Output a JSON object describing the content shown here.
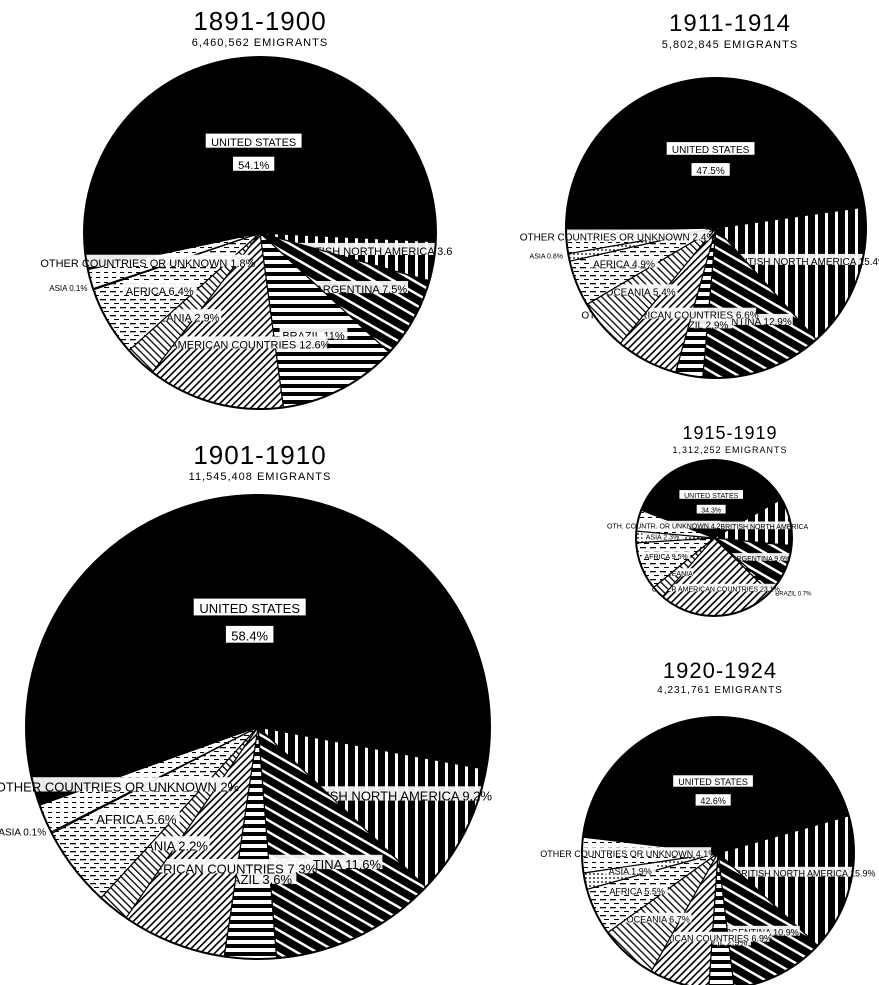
{
  "chart_data": [
    {
      "type": "pie",
      "title": "1891-1900",
      "subtitle": "6,460,562 EMIGRANTS",
      "slices": [
        {
          "label": "UNITED STATES",
          "value": 54.1,
          "pct": "54.1%"
        },
        {
          "label": "BRITISH NORTH AMERICA",
          "value": 3.6,
          "pct": "3.6"
        },
        {
          "label": "ARGENTINA",
          "value": 7.5,
          "pct": "7.5%"
        },
        {
          "label": "BRAZIL",
          "value": 11,
          "pct": "11%"
        },
        {
          "label": "OTHER AMERICAN COUNTRIES",
          "value": 12.6,
          "pct": "12.6%"
        },
        {
          "label": "OCEANIA",
          "value": 2.9,
          "pct": "2.9%"
        },
        {
          "label": "AFRICA",
          "value": 6.4,
          "pct": "6.4%"
        },
        {
          "label": "ASIA",
          "value": 0.1,
          "pct": "0.1%"
        },
        {
          "label": "OTHER COUNTRIES OR UNKNOWN",
          "value": 1.8,
          "pct": "1.8%"
        }
      ]
    },
    {
      "type": "pie",
      "title": "1911-1914",
      "subtitle": "5,802,845 EMIGRANTS",
      "slices": [
        {
          "label": "UNITED STATES",
          "value": 47.5,
          "pct": "47.5%"
        },
        {
          "label": "BRITISH NORTH AMERICA",
          "value": 15.4,
          "pct": "15.4%"
        },
        {
          "label": "ARGENTINA",
          "value": 12.9,
          "pct": "12.9%"
        },
        {
          "label": "BRAZIL",
          "value": 2.9,
          "pct": "2.9%"
        },
        {
          "label": "OTHER AMERICAN COUNTRIES",
          "value": 6.6,
          "pct": "6.6%"
        },
        {
          "label": "OCEANIA",
          "value": 5.4,
          "pct": "5.4%"
        },
        {
          "label": "AFRICA",
          "value": 4.9,
          "pct": "4.9%"
        },
        {
          "label": "ASIA",
          "value": 0.8,
          "pct": "0.8%"
        },
        {
          "label": "OTHER COUNTRIES OR UNKNOWN",
          "value": 2.4,
          "pct": "2.4%"
        }
      ]
    },
    {
      "type": "pie",
      "title": "1901-1910",
      "subtitle": "11,545,408 EMIGRANTS",
      "slices": [
        {
          "label": "UNITED STATES",
          "value": 58.4,
          "pct": "58.4%"
        },
        {
          "label": "BRITISH NORTH AMERICA",
          "value": 9.2,
          "pct": "9.2%"
        },
        {
          "label": "ARGENTINA",
          "value": 11.6,
          "pct": "11.6%"
        },
        {
          "label": "BRAZIL",
          "value": 3.6,
          "pct": "3.6%"
        },
        {
          "label": "OTHER AMERICAN COUNTRIES",
          "value": 7.3,
          "pct": "7.3%"
        },
        {
          "label": "OCEANIA",
          "value": 2.2,
          "pct": "2.2%"
        },
        {
          "label": "AFRICA",
          "value": 5.6,
          "pct": "5.6%"
        },
        {
          "label": "ASIA",
          "value": 0.1,
          "pct": "0.1%"
        },
        {
          "label": "OTHER COUNTRIES OR UNKNOWN",
          "value": 2,
          "pct": "2%"
        }
      ]
    },
    {
      "type": "pie",
      "title": "1915-1919",
      "subtitle": "1,312,252 EMIGRANTS",
      "slices": [
        {
          "label": "UNITED STATES",
          "value": 34.3,
          "pct": "34.3%"
        },
        {
          "label": "BRITISH NORTH AMERICA",
          "value": 9.5,
          "pct": ""
        },
        {
          "label": "ARGENTINA",
          "value": 9.6,
          "pct": "9.6%"
        },
        {
          "label": "BRAZIL",
          "value": 0.7,
          "pct": "0.7%"
        },
        {
          "label": "OTHER AMERICAN COUNTRIES",
          "value": 23.1,
          "pct": "23.1%"
        },
        {
          "label": "OCEANIA",
          "value": 2.5,
          "pct": ""
        },
        {
          "label": "AFRICA",
          "value": 9.5,
          "pct": "9.5%"
        },
        {
          "label": "ASIA",
          "value": 2.3,
          "pct": "2.3%"
        },
        {
          "label": "OTH. COUNTR. OR UNKNOWN",
          "value": 4.2,
          "pct": "4.2"
        }
      ]
    },
    {
      "type": "pie",
      "title": "1920-1924",
      "subtitle": "4,231,761 EMIGRANTS",
      "slices": [
        {
          "label": "UNITED STATES",
          "value": 42.6,
          "pct": "42.6%"
        },
        {
          "label": "BRITISH NORTH AMERICA",
          "value": 15.9,
          "pct": "15.9%"
        },
        {
          "label": "ARGENTINA",
          "value": 10.9,
          "pct": "10.9%"
        },
        {
          "label": "BRAZIL",
          "value": 2.9,
          "pct": "2.9%"
        },
        {
          "label": "OTHER AMERICAN COUNTRIES",
          "value": 6.9,
          "pct": "6.9%"
        },
        {
          "label": "OCEANIA",
          "value": 6.7,
          "pct": "6.7%"
        },
        {
          "label": "AFRICA",
          "value": 5.5,
          "pct": "5.5%"
        },
        {
          "label": "ASIA",
          "value": 1.9,
          "pct": "1.9%"
        },
        {
          "label": "OTHER COUNTRIES OR UNKNOWN",
          "value": 4.1,
          "pct": "4.1%"
        }
      ]
    }
  ]
}
